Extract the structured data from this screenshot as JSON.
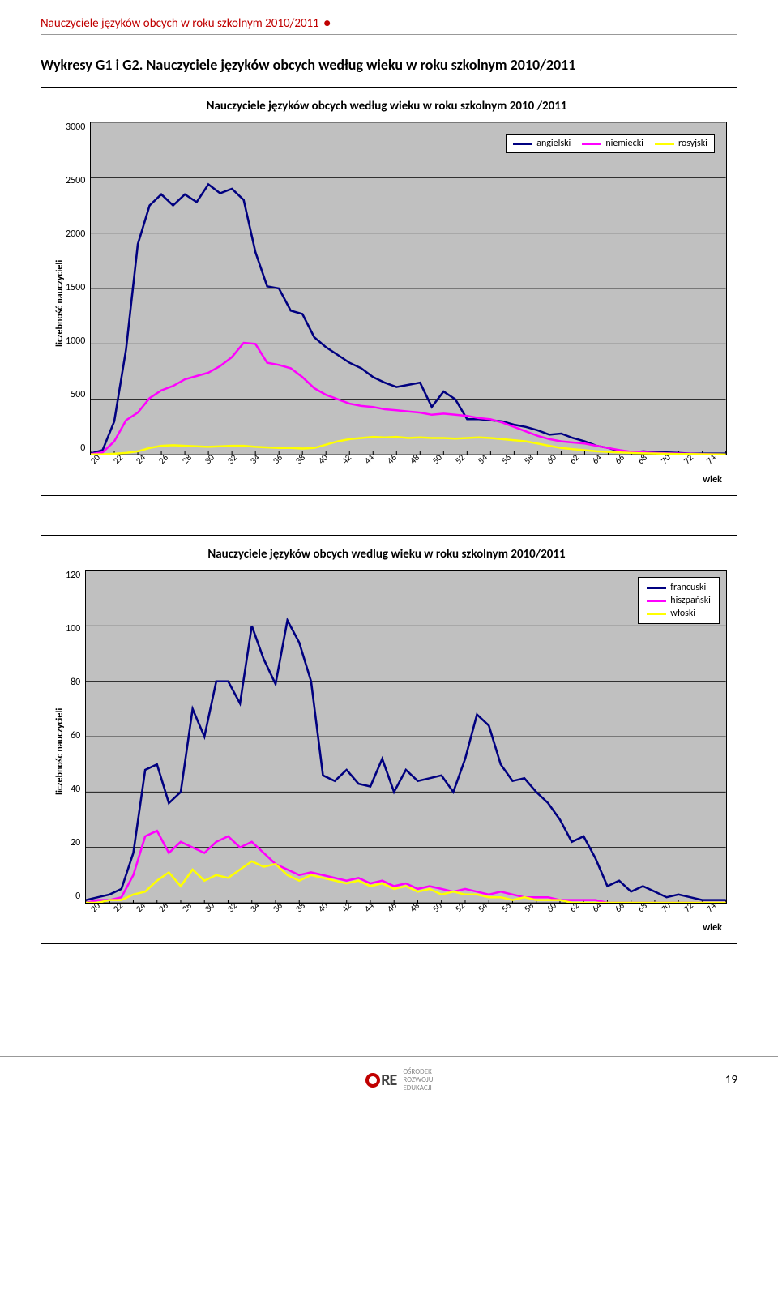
{
  "doc_header": "Nauczyciele języków obcych w roku szkolnym 2010/2011",
  "section_title": "Wykresy G1 i G2. Nauczyciele języków obcych według wieku w roku szkolnym 2010/2011",
  "chart1": {
    "type": "line",
    "title": "Nauczyciele języków obcych według wieku w roku szkolnym 2010 /2011",
    "ylabel": "liczebność nauczycieli",
    "xlabel": "wiek",
    "background_color": "#c0c0c0",
    "grid_color": "#000000",
    "ylim": [
      0,
      3000
    ],
    "ytick_step": 500,
    "yticks": [
      "3000",
      "2500",
      "2000",
      "1500",
      "1000",
      "500",
      "0"
    ],
    "xlim": [
      20,
      74
    ],
    "xtick_step": 2,
    "xticks": [
      "20",
      "22",
      "24",
      "26",
      "28",
      "30",
      "32",
      "34",
      "36",
      "38",
      "40",
      "42",
      "44",
      "46",
      "48",
      "50",
      "52",
      "54",
      "56",
      "58",
      "60",
      "62",
      "64",
      "66",
      "68",
      "70",
      "72",
      "74"
    ],
    "line_width": 2.5,
    "legend_pos": "top-right-inside",
    "series": [
      {
        "name": "angielski",
        "color": "#000080",
        "values": [
          10,
          40,
          300,
          950,
          1900,
          2250,
          2350,
          2250,
          2350,
          2280,
          2440,
          2360,
          2400,
          2300,
          1830,
          1520,
          1500,
          1300,
          1270,
          1060,
          970,
          900,
          830,
          780,
          700,
          650,
          610,
          630,
          650,
          430,
          570,
          500,
          320,
          320,
          310,
          300,
          270,
          250,
          220,
          180,
          190,
          150,
          120,
          80,
          60,
          30,
          20,
          30,
          20,
          20,
          15,
          10,
          10,
          10,
          10
        ]
      },
      {
        "name": "niemiecki",
        "color": "#ff00ff",
        "values": [
          5,
          20,
          120,
          310,
          380,
          510,
          580,
          620,
          680,
          710,
          740,
          800,
          880,
          1010,
          1000,
          830,
          810,
          780,
          700,
          600,
          540,
          500,
          460,
          440,
          430,
          410,
          400,
          390,
          380,
          360,
          370,
          360,
          350,
          330,
          320,
          290,
          250,
          210,
          170,
          140,
          120,
          110,
          100,
          80,
          60,
          40,
          25,
          20,
          15,
          12,
          10,
          8,
          6,
          4,
          2
        ]
      },
      {
        "name": "rosyjski",
        "color": "#ffff00",
        "values": [
          2,
          4,
          8,
          15,
          30,
          60,
          80,
          85,
          80,
          75,
          70,
          75,
          80,
          80,
          70,
          65,
          60,
          60,
          55,
          60,
          90,
          120,
          140,
          150,
          160,
          155,
          160,
          150,
          155,
          150,
          150,
          145,
          150,
          155,
          150,
          140,
          130,
          120,
          100,
          80,
          60,
          50,
          40,
          30,
          25,
          20,
          15,
          12,
          10,
          8,
          6,
          5,
          4,
          3,
          2
        ]
      }
    ]
  },
  "chart2": {
    "type": "line",
    "title": "Nauczyciele języków obcych wedlug wieku w roku szkolnym 2010/2011",
    "ylabel": "liczebnośc nauczycieli",
    "xlabel": "wiek",
    "background_color": "#c0c0c0",
    "grid_color": "#000000",
    "ylim": [
      0,
      120
    ],
    "ytick_step": 20,
    "yticks": [
      "120",
      "100",
      "80",
      "60",
      "40",
      "20",
      "0"
    ],
    "xlim": [
      20,
      74
    ],
    "xtick_step": 2,
    "xticks": [
      "20",
      "22",
      "24",
      "26",
      "28",
      "30",
      "32",
      "34",
      "36",
      "38",
      "40",
      "42",
      "44",
      "46",
      "48",
      "50",
      "52",
      "54",
      "56",
      "58",
      "60",
      "62",
      "64",
      "66",
      "68",
      "70",
      "72",
      "74"
    ],
    "line_width": 2.5,
    "legend_pos": "top-right-outside",
    "series": [
      {
        "name": "francuski",
        "color": "#000080",
        "values": [
          1,
          2,
          3,
          5,
          18,
          48,
          50,
          36,
          40,
          70,
          60,
          80,
          80,
          72,
          100,
          88,
          79,
          102,
          94,
          80,
          46,
          44,
          48,
          43,
          42,
          52,
          40,
          48,
          44,
          45,
          46,
          40,
          52,
          68,
          64,
          50,
          44,
          45,
          40,
          36,
          30,
          22,
          24,
          16,
          6,
          8,
          4,
          6,
          4,
          2,
          3,
          2,
          1,
          1,
          1
        ]
      },
      {
        "name": "hiszpański",
        "color": "#ff00ff",
        "values": [
          0,
          1,
          1,
          2,
          10,
          24,
          26,
          18,
          22,
          20,
          18,
          22,
          24,
          20,
          22,
          18,
          14,
          12,
          10,
          11,
          10,
          9,
          8,
          9,
          7,
          8,
          6,
          7,
          5,
          6,
          5,
          4,
          5,
          4,
          3,
          4,
          3,
          2,
          2,
          2,
          1,
          1,
          1,
          1,
          0,
          0,
          0,
          0,
          0,
          0,
          0,
          0,
          0,
          0,
          0
        ]
      },
      {
        "name": "włoski",
        "color": "#ffff00",
        "values": [
          0,
          0,
          1,
          1,
          3,
          4,
          8,
          11,
          6,
          12,
          8,
          10,
          9,
          12,
          15,
          13,
          14,
          10,
          8,
          10,
          9,
          8,
          7,
          8,
          6,
          7,
          5,
          6,
          4,
          5,
          3,
          4,
          3,
          3,
          2,
          2,
          1,
          2,
          1,
          1,
          1,
          0,
          0,
          0,
          0,
          0,
          0,
          0,
          0,
          0,
          0,
          0,
          0,
          0,
          0
        ]
      }
    ]
  },
  "footer": {
    "logo_text1": "Ośrodek",
    "logo_text2": "Rozwoju",
    "logo_text3": "Edukacji",
    "page_num": "19"
  }
}
